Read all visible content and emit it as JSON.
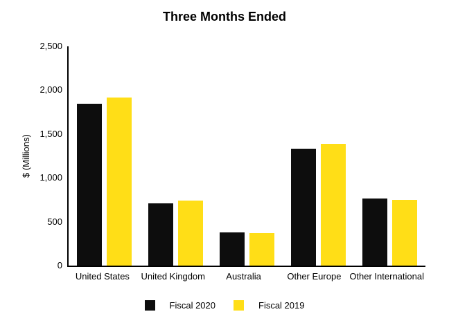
{
  "chart_data": {
    "type": "bar",
    "title": "Three Months Ended",
    "ylabel": "$ (Millions)",
    "xlabel": "",
    "categories": [
      "United States",
      "United Kingdom",
      "Australia",
      "Other Europe",
      "Other International"
    ],
    "series": [
      {
        "name": "Fiscal 2020",
        "color": "#0d0d0d",
        "values": [
          1845,
          710,
          375,
          1330,
          765
        ]
      },
      {
        "name": "Fiscal 2019",
        "color": "#ffde17",
        "values": [
          1920,
          745,
          370,
          1390,
          750
        ]
      }
    ],
    "ylim": [
      0,
      2500
    ],
    "ytick_labels": [
      "2,500",
      "2,000",
      "1,500",
      "1,000",
      "500",
      "0"
    ],
    "ytick_values": [
      2500,
      2000,
      1500,
      1000,
      500,
      0
    ],
    "grid": false,
    "legend_position": "bottom",
    "background": "#ffffff",
    "axis_color": "#000000"
  }
}
